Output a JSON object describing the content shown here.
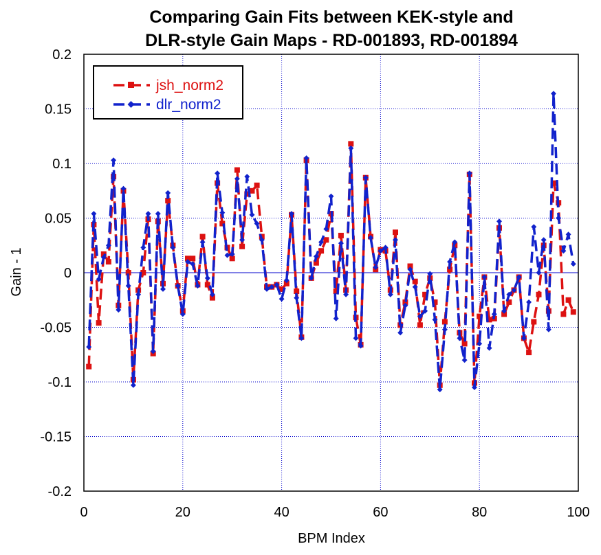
{
  "chart_data": {
    "type": "line",
    "title_line1": "Comparing Gain Fits between KEK-style and",
    "title_line2": "DLR-style Gain Maps - RD-001893, RD-001894",
    "xlabel": "BPM Index",
    "ylabel": "Gain - 1",
    "xlim": [
      0,
      100
    ],
    "ylim": [
      -0.2,
      0.2
    ],
    "xticks": [
      0,
      20,
      40,
      60,
      80,
      100
    ],
    "xtick_labels": [
      "0",
      "20",
      "40",
      "60",
      "80",
      "100"
    ],
    "yticks": [
      -0.2,
      -0.15,
      -0.1,
      -0.05,
      0,
      0.05,
      0.1,
      0.15,
      0.2
    ],
    "ytick_labels": [
      "-0.2",
      "-0.15",
      "-0.1",
      "-0.05",
      "0",
      "0.05",
      "0.1",
      "0.15",
      "0.2"
    ],
    "grid": true,
    "legend_position": "top-left",
    "series": [
      {
        "name": "jsh_norm2",
        "color": "#dd1111",
        "marker": "square",
        "x": [
          1,
          2,
          3,
          4,
          5,
          6,
          7,
          8,
          9,
          10,
          11,
          12,
          13,
          14,
          15,
          16,
          17,
          18,
          19,
          20,
          21,
          22,
          23,
          24,
          25,
          26,
          27,
          28,
          29,
          30,
          31,
          32,
          33,
          34,
          35,
          36,
          37,
          38,
          39,
          40,
          41,
          42,
          43,
          44,
          45,
          46,
          47,
          48,
          49,
          50,
          51,
          52,
          53,
          54,
          55,
          56,
          57,
          58,
          59,
          60,
          61,
          62,
          63,
          64,
          65,
          66,
          67,
          68,
          69,
          70,
          71,
          72,
          73,
          74,
          75,
          76,
          77,
          78,
          79,
          80,
          81,
          82,
          83,
          84,
          85,
          86,
          87,
          88,
          89,
          90,
          91,
          92,
          93,
          94,
          95,
          96,
          97,
          98,
          99
        ],
        "y": [
          -0.086,
          0.044,
          -0.046,
          0.017,
          0.01,
          0.088,
          -0.03,
          0.075,
          0.0,
          -0.098,
          -0.016,
          0.0,
          0.049,
          -0.074,
          0.047,
          -0.01,
          0.066,
          0.025,
          -0.012,
          -0.035,
          0.013,
          0.013,
          -0.011,
          0.033,
          -0.011,
          -0.023,
          0.082,
          0.045,
          0.023,
          0.013,
          0.094,
          0.024,
          0.072,
          0.075,
          0.08,
          0.033,
          -0.013,
          -0.013,
          -0.011,
          -0.015,
          -0.01,
          0.053,
          -0.017,
          -0.059,
          0.103,
          -0.005,
          0.009,
          0.02,
          0.03,
          0.054,
          -0.017,
          0.034,
          -0.016,
          0.118,
          -0.041,
          -0.066,
          0.087,
          0.033,
          0.003,
          0.021,
          0.02,
          -0.016,
          0.037,
          -0.048,
          -0.027,
          0.006,
          -0.008,
          -0.048,
          -0.02,
          -0.005,
          -0.027,
          -0.103,
          -0.045,
          0.003,
          0.025,
          -0.055,
          -0.065,
          0.09,
          -0.101,
          -0.04,
          -0.004,
          -0.043,
          -0.042,
          0.041,
          -0.038,
          -0.027,
          -0.016,
          -0.004,
          -0.06,
          -0.073,
          -0.045,
          -0.02,
          0.025,
          -0.035,
          0.082,
          0.064,
          -0.038,
          -0.025,
          -0.036
        ]
      },
      {
        "name": "dlr_norm2",
        "color": "#1122cc",
        "marker": "diamond",
        "x": [
          1,
          2,
          3,
          4,
          5,
          6,
          7,
          8,
          9,
          10,
          11,
          12,
          13,
          14,
          15,
          16,
          17,
          18,
          19,
          20,
          21,
          22,
          23,
          24,
          25,
          26,
          27,
          28,
          29,
          30,
          31,
          32,
          33,
          34,
          35,
          36,
          37,
          38,
          39,
          40,
          41,
          42,
          43,
          44,
          45,
          46,
          47,
          48,
          49,
          50,
          51,
          52,
          53,
          54,
          55,
          56,
          57,
          58,
          59,
          60,
          61,
          62,
          63,
          64,
          65,
          66,
          67,
          68,
          69,
          70,
          71,
          72,
          73,
          74,
          75,
          76,
          77,
          78,
          79,
          80,
          81,
          82,
          83,
          84,
          85,
          86,
          87,
          88,
          89,
          90,
          91,
          92,
          93,
          94,
          95,
          96,
          97,
          98,
          99
        ],
        "y": [
          -0.068,
          0.054,
          -0.006,
          0.014,
          0.025,
          0.103,
          -0.034,
          0.077,
          -0.012,
          -0.103,
          -0.02,
          0.023,
          0.054,
          -0.072,
          0.054,
          -0.015,
          0.073,
          0.023,
          -0.012,
          -0.038,
          0.01,
          0.008,
          -0.012,
          0.028,
          -0.005,
          -0.02,
          0.091,
          0.055,
          0.016,
          0.017,
          0.086,
          0.03,
          0.088,
          0.053,
          0.045,
          0.03,
          -0.015,
          -0.013,
          -0.011,
          -0.024,
          -0.007,
          0.054,
          -0.023,
          -0.06,
          0.105,
          -0.005,
          0.015,
          0.028,
          0.04,
          0.07,
          -0.042,
          0.027,
          -0.02,
          0.114,
          -0.06,
          -0.067,
          0.087,
          0.032,
          0.005,
          0.02,
          0.023,
          -0.02,
          0.03,
          -0.055,
          -0.03,
          0.003,
          -0.013,
          -0.04,
          -0.035,
          -0.001,
          -0.043,
          -0.107,
          -0.052,
          0.01,
          0.028,
          -0.06,
          -0.08,
          0.091,
          -0.105,
          -0.065,
          -0.004,
          -0.069,
          -0.038,
          0.047,
          -0.035,
          -0.02,
          -0.016,
          -0.004,
          -0.06,
          -0.027,
          0.042,
          0.0,
          0.03,
          -0.052,
          0.164,
          0.05,
          0.02,
          0.035,
          0.008
        ]
      }
    ]
  }
}
